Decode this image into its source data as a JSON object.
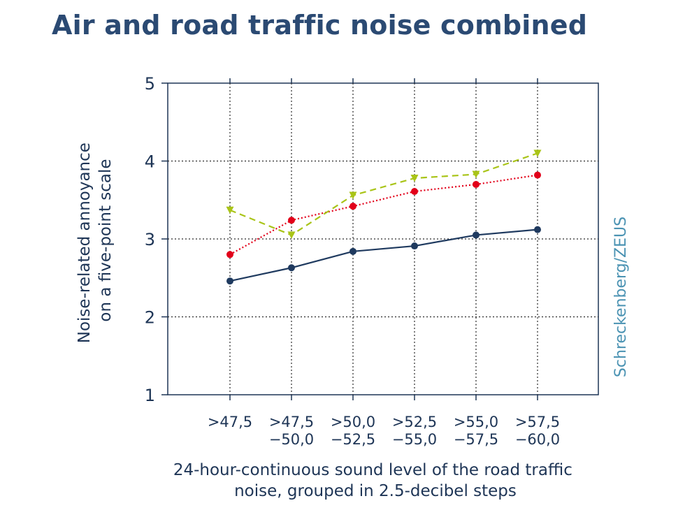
{
  "title": "Air and road traffic noise combined",
  "credit": "Schreckenberg/ZEUS",
  "chart_data": {
    "type": "line",
    "title": "Air and road traffic noise combined",
    "ylabel_lines": [
      "Noise-related annoyance",
      "on a five-point scale"
    ],
    "xlabel_lines": [
      "24-hour-continuous sound level of the road traffic",
      "noise, grouped in 2.5-decibel steps"
    ],
    "categories": [
      [
        ">47,5"
      ],
      [
        ">47,5",
        "−50,0"
      ],
      [
        ">50,0",
        "−52,5"
      ],
      [
        ">52,5",
        "−55,0"
      ],
      [
        ">55,0",
        "−57,5"
      ],
      [
        ">57,5",
        "−60,0"
      ]
    ],
    "yticks": [
      "1",
      "2",
      "3",
      "4",
      "5"
    ],
    "ylim": [
      1,
      5
    ],
    "grid": true,
    "series": [
      {
        "name": "series-navy",
        "color": "#1f3a5f",
        "style": "solid",
        "marker": "circle",
        "values": [
          2.46,
          2.63,
          2.84,
          2.91,
          3.05,
          3.12
        ]
      },
      {
        "name": "series-red",
        "color": "#e2001a",
        "style": "dotted",
        "marker": "circle",
        "values": [
          2.8,
          3.24,
          3.42,
          3.61,
          3.7,
          3.82
        ]
      },
      {
        "name": "series-green",
        "color": "#a9c418",
        "style": "dashed",
        "marker": "triangle-down",
        "values": [
          3.37,
          3.05,
          3.56,
          3.78,
          3.83,
          4.1
        ]
      }
    ]
  }
}
